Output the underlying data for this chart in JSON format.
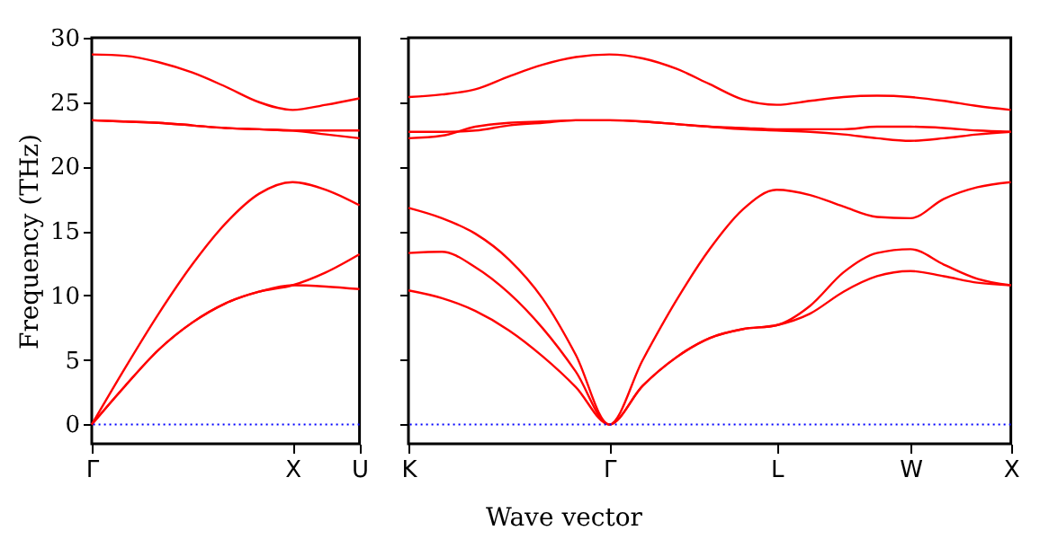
{
  "chart_data": [
    {
      "type": "line",
      "ylabel": "Frequency (THz)",
      "categories": [
        "Γ",
        null,
        null,
        null,
        null,
        null,
        "X",
        null,
        "U"
      ],
      "ylim": [
        -1.5,
        30
      ],
      "yticks": [
        0,
        5,
        10,
        15,
        20,
        25,
        30
      ],
      "series": [
        {
          "color": "#ff0000",
          "values": [
            0,
            3.0,
            5.8,
            7.9,
            9.4,
            10.3,
            10.8,
            10.7,
            10.5
          ]
        },
        {
          "color": "#ff0000",
          "values": [
            0,
            3.0,
            5.8,
            7.9,
            9.4,
            10.3,
            10.8,
            11.8,
            13.2
          ]
        },
        {
          "color": "#ff0000",
          "values": [
            0,
            4.4,
            8.6,
            12.4,
            15.6,
            17.9,
            18.8,
            18.2,
            17.0
          ]
        },
        {
          "color": "#ff0000",
          "values": [
            23.6,
            23.5,
            23.4,
            23.2,
            23.0,
            22.9,
            22.8,
            22.5,
            22.2
          ]
        },
        {
          "color": "#ff0000",
          "values": [
            23.6,
            23.5,
            23.4,
            23.2,
            23.0,
            22.9,
            22.8,
            22.8,
            22.8
          ]
        },
        {
          "color": "#ff0000",
          "values": [
            28.7,
            28.6,
            28.1,
            27.3,
            26.2,
            25.0,
            24.4,
            24.8,
            25.3
          ]
        }
      ],
      "ref_lines": [
        {
          "axis": "y",
          "value": 0,
          "color": "#0000ff",
          "line_style": "dotted"
        }
      ]
    },
    {
      "type": "line",
      "xlabel": "Wave vector",
      "tick_labels": "x",
      "categories": [
        "K",
        null,
        null,
        null,
        null,
        null,
        "Γ",
        null,
        null,
        null,
        null,
        "L",
        null,
        null,
        null,
        "W",
        null,
        null,
        "X"
      ],
      "ylim": [
        -1.5,
        30
      ],
      "yticks": [
        0,
        5,
        10,
        15,
        20,
        25,
        30
      ],
      "series": [
        {
          "color": "#ff0000",
          "values": [
            10.4,
            9.8,
            8.8,
            7.3,
            5.3,
            2.9,
            0,
            3.0,
            5.2,
            6.7,
            7.4,
            7.7,
            8.6,
            10.3,
            11.5,
            11.9,
            11.5,
            11.0,
            10.8
          ]
        },
        {
          "color": "#ff0000",
          "values": [
            13.3,
            13.4,
            12.2,
            10.2,
            7.5,
            4.1,
            0,
            3.0,
            5.2,
            6.7,
            7.4,
            7.7,
            9.2,
            11.8,
            13.3,
            13.6,
            12.4,
            11.3,
            10.8
          ]
        },
        {
          "color": "#ff0000",
          "values": [
            16.8,
            16.0,
            14.8,
            12.8,
            9.8,
            5.4,
            0,
            5.0,
            9.6,
            13.6,
            16.7,
            18.2,
            17.8,
            16.9,
            16.1,
            16.0,
            17.5,
            18.4,
            18.8
          ]
        },
        {
          "color": "#ff0000",
          "values": [
            22.2,
            22.4,
            23.1,
            23.4,
            23.5,
            23.6,
            23.6,
            23.5,
            23.3,
            23.1,
            22.9,
            22.8,
            22.7,
            22.5,
            22.2,
            22.0,
            22.2,
            22.5,
            22.7
          ]
        },
        {
          "color": "#ff0000",
          "values": [
            22.7,
            22.7,
            22.8,
            23.2,
            23.4,
            23.6,
            23.6,
            23.5,
            23.3,
            23.1,
            23.0,
            22.9,
            22.9,
            22.9,
            23.1,
            23.1,
            23.0,
            22.8,
            22.7
          ]
        },
        {
          "color": "#ff0000",
          "values": [
            25.4,
            25.6,
            26.0,
            27.0,
            27.9,
            28.5,
            28.7,
            28.4,
            27.6,
            26.4,
            25.2,
            24.8,
            25.1,
            25.4,
            25.5,
            25.4,
            25.1,
            24.7,
            24.4
          ]
        }
      ],
      "ref_lines": [
        {
          "axis": "y",
          "value": 0,
          "color": "#0000ff",
          "line_style": "dotted"
        }
      ]
    }
  ]
}
